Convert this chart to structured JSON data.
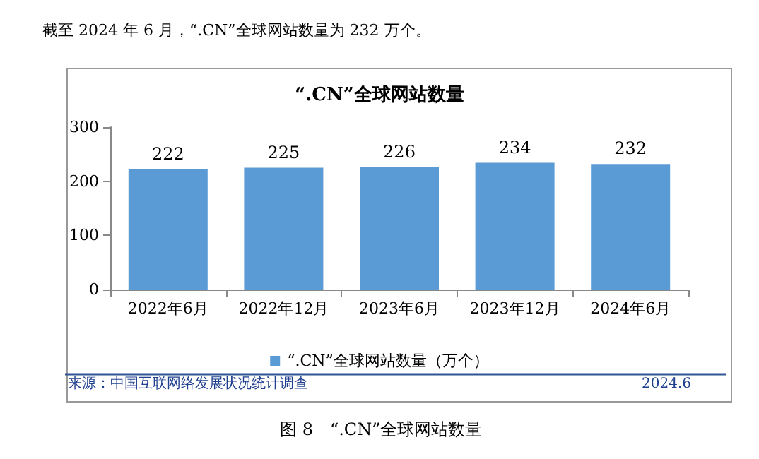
{
  "chart_data": {
    "type": "bar",
    "title": "“.CN”全球网站数量",
    "categories": [
      "2022年6月",
      "2022年12月",
      "2023年6月",
      "2023年12月",
      "2024年6月"
    ],
    "series": [
      {
        "name": "“.CN”全球网站数量（万个）",
        "color": "#5b9bd5",
        "values": [
          222,
          225,
          226,
          234,
          232
        ]
      }
    ],
    "ylim": [
      0,
      300
    ],
    "yticks": [
      0,
      100,
      200,
      300
    ],
    "grid": false,
    "legend": "bottom",
    "data_labels": true,
    "annotations": [
      "截至 2024 年 6 月，“.CN”全球网站数量为 232 万个。",
      "来源：中国互联网络发展状况统计调查",
      "2024.6",
      "图 8　“.CN”全球网站数量"
    ]
  }
}
